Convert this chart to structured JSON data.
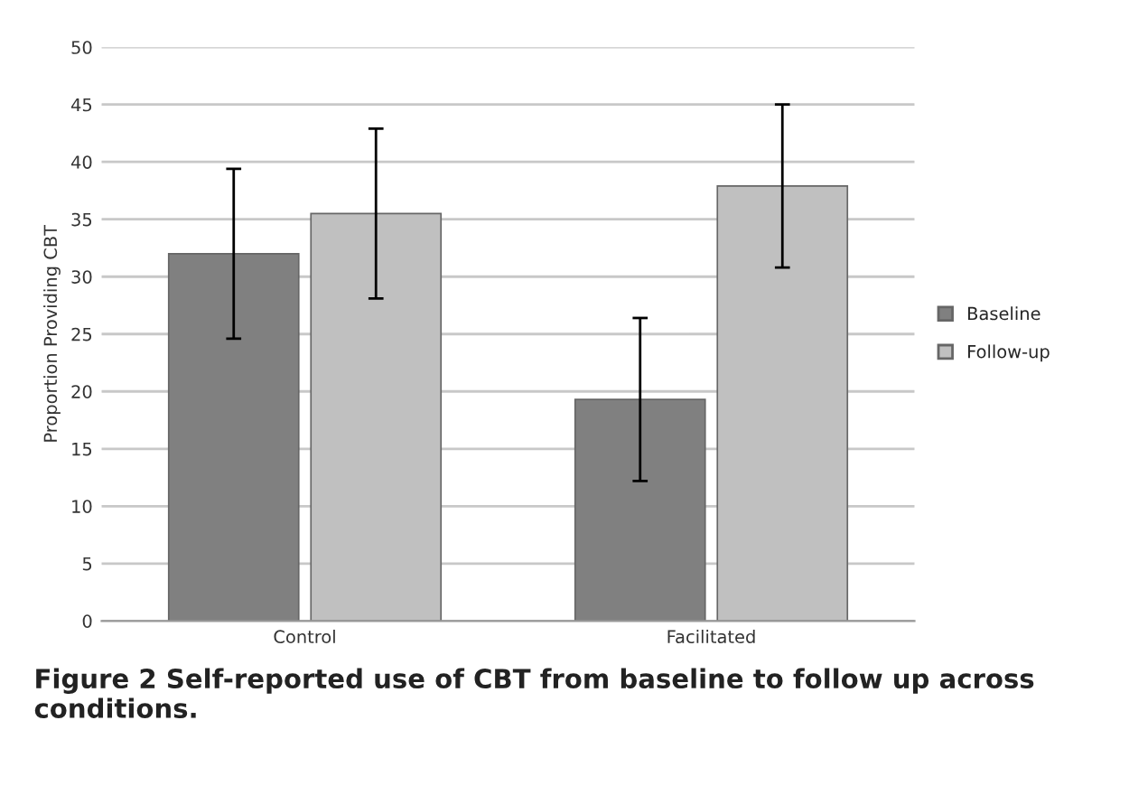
{
  "chart_data": {
    "type": "bar",
    "ylabel": "Proportion Providing CBT",
    "categories": [
      "Control",
      "Facilitated"
    ],
    "series": [
      {
        "name": "Baseline",
        "color": "#808080",
        "values": [
          32,
          19.3
        ],
        "errors": [
          7.4,
          7.1
        ]
      },
      {
        "name": "Follow-up",
        "color": "#c0c0c0",
        "values": [
          35.5,
          37.9
        ],
        "errors": [
          7.4,
          7.1
        ]
      }
    ],
    "ylim": [
      0,
      50
    ],
    "yticks": [
      0,
      5,
      10,
      15,
      20,
      25,
      30,
      35,
      40,
      45,
      50
    ],
    "grid": "y",
    "legend": "right",
    "annotations": [
      "Figure 2 Self-reported use of CBT from baseline to follow up across conditions."
    ]
  }
}
